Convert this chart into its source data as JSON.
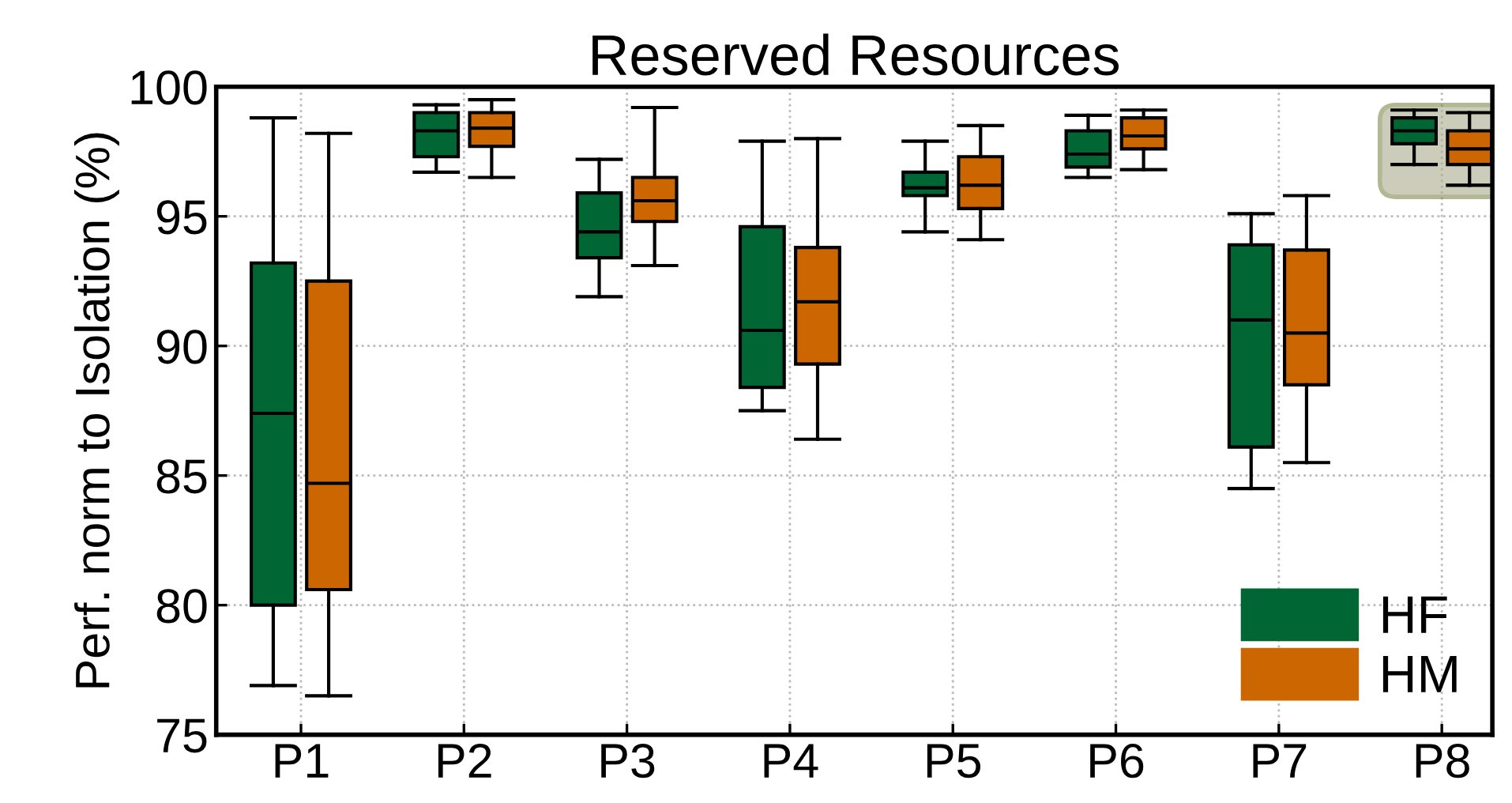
{
  "chart_data": {
    "type": "box",
    "title": "Reserved Resources",
    "ylabel": "Perf. norm to Isolation (%)",
    "categories": [
      "P1",
      "P2",
      "P3",
      "P4",
      "P5",
      "P6",
      "P7",
      "P8"
    ],
    "ylim": [
      75,
      100
    ],
    "yticks": [
      75,
      80,
      85,
      90,
      95,
      100
    ],
    "grid": true,
    "legend": "bottom right",
    "series": [
      {
        "name": "HF",
        "color": "#006633",
        "boxes": [
          {
            "low": 76.9,
            "q1": 80.0,
            "median": 87.4,
            "q3": 93.2,
            "high": 98.8
          },
          {
            "low": 96.7,
            "q1": 97.3,
            "median": 98.3,
            "q3": 99.0,
            "high": 99.3
          },
          {
            "low": 91.9,
            "q1": 93.4,
            "median": 94.4,
            "q3": 95.9,
            "high": 97.2
          },
          {
            "low": 87.5,
            "q1": 88.4,
            "median": 90.6,
            "q3": 94.6,
            "high": 97.9
          },
          {
            "low": 94.4,
            "q1": 95.8,
            "median": 96.1,
            "q3": 96.7,
            "high": 97.9
          },
          {
            "low": 96.5,
            "q1": 96.9,
            "median": 97.4,
            "q3": 98.3,
            "high": 98.9
          },
          {
            "low": 84.5,
            "q1": 86.1,
            "median": 91.0,
            "q3": 93.9,
            "high": 95.1
          },
          {
            "low": 97.0,
            "q1": 97.8,
            "median": 98.3,
            "q3": 98.8,
            "high": 99.1
          }
        ]
      },
      {
        "name": "HM",
        "color": "#cc6600",
        "boxes": [
          {
            "low": 76.5,
            "q1": 80.6,
            "median": 84.7,
            "q3": 92.5,
            "high": 98.2
          },
          {
            "low": 96.5,
            "q1": 97.7,
            "median": 98.4,
            "q3": 99.0,
            "high": 99.5
          },
          {
            "low": 93.1,
            "q1": 94.8,
            "median": 95.6,
            "q3": 96.5,
            "high": 99.2
          },
          {
            "low": 86.4,
            "q1": 89.3,
            "median": 91.7,
            "q3": 93.8,
            "high": 98.0
          },
          {
            "low": 94.1,
            "q1": 95.3,
            "median": 96.2,
            "q3": 97.3,
            "high": 98.5
          },
          {
            "low": 96.8,
            "q1": 97.6,
            "median": 98.1,
            "q3": 98.8,
            "high": 99.1
          },
          {
            "low": 85.5,
            "q1": 88.5,
            "median": 90.5,
            "q3": 93.7,
            "high": 95.8
          },
          {
            "low": 96.2,
            "q1": 97.0,
            "median": 97.6,
            "q3": 98.3,
            "high": 99.0
          }
        ]
      }
    ]
  }
}
